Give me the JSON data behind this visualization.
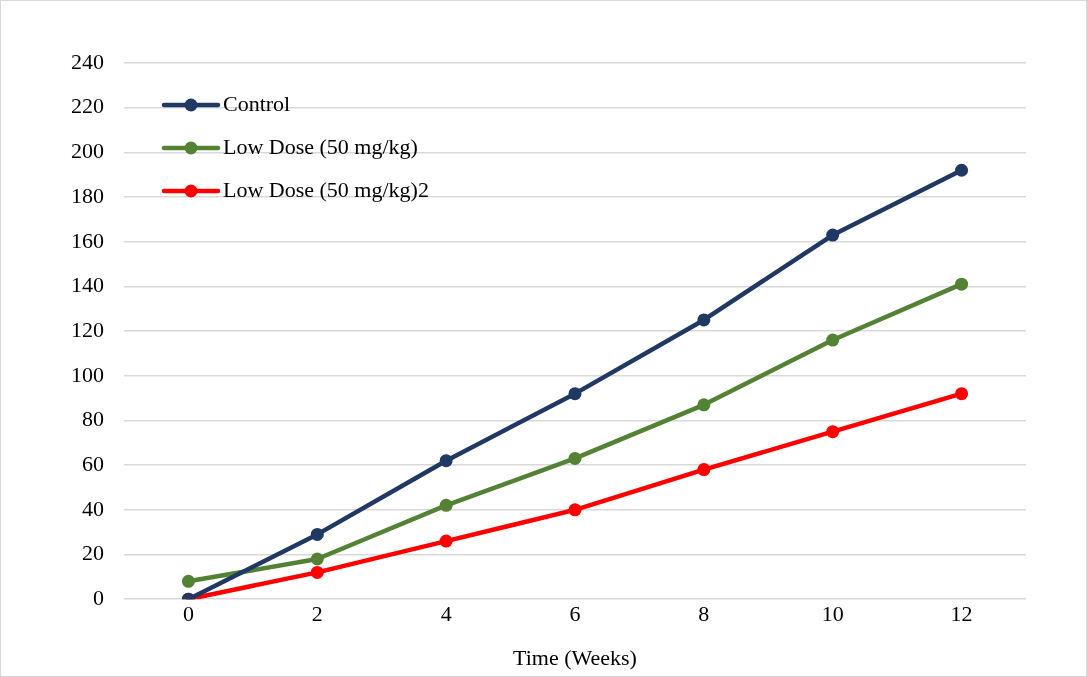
{
  "chart_data": {
    "type": "line",
    "xlabel": "Time (Weeks)",
    "x": [
      0,
      2,
      4,
      6,
      8,
      10,
      12
    ],
    "xlim": [
      -1,
      13
    ],
    "xticks": [
      0,
      2,
      4,
      6,
      8,
      10,
      12
    ],
    "ylim": [
      0,
      240
    ],
    "yticks": [
      0,
      20,
      40,
      60,
      80,
      100,
      120,
      140,
      160,
      180,
      200,
      220,
      240
    ],
    "grid": "y",
    "legend": "top left",
    "marker": "circle",
    "line_style": "solid",
    "series": [
      {
        "name": "Control",
        "color": "#203864",
        "values": [
          0,
          29,
          62,
          92,
          125,
          163,
          192
        ]
      },
      {
        "name": "Low Dose (50 mg/kg)",
        "color": "#548235",
        "values": [
          8,
          18,
          42,
          63,
          87,
          116,
          141
        ]
      },
      {
        "name": "Low Dose (50 mg/kg)2",
        "color": "#ff0000",
        "values": [
          0,
          12,
          26,
          40,
          58,
          75,
          92
        ]
      }
    ]
  }
}
